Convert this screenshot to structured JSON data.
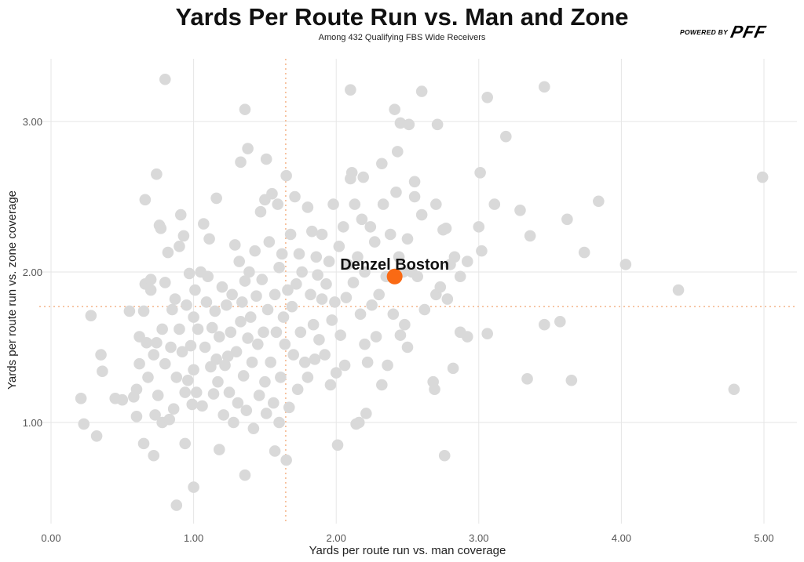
{
  "chart_data": {
    "type": "scatter",
    "title": "Yards Per Route Run vs. Man and Zone",
    "subtitle": "Among 432 Qualifying FBS Wide Receivers",
    "xlabel": "Yards per route run vs. man coverage",
    "ylabel": "Yards per route run vs. zone coverage",
    "xlim": [
      -0.05,
      5.1
    ],
    "ylim": [
      0.38,
      3.35
    ],
    "xticks": [
      "0.00",
      "1.00",
      "2.00",
      "3.00",
      "4.00",
      "5.00"
    ],
    "xtick_values": [
      0,
      1,
      2,
      3,
      4,
      5
    ],
    "yticks": [
      "1.00",
      "2.00",
      "3.00"
    ],
    "ytick_values": [
      1,
      2,
      3
    ],
    "ref_lines": {
      "x": 1.646,
      "y": 1.77
    },
    "highlight": {
      "name": "Denzel Boston",
      "x": 2.41,
      "y": 1.97,
      "color": "#fa6a14"
    },
    "point_color": "#d9d9d9",
    "points": [
      [
        0.8,
        3.28
      ],
      [
        3.46,
        3.23
      ],
      [
        2.1,
        3.21
      ],
      [
        2.6,
        3.2
      ],
      [
        3.06,
        3.16
      ],
      [
        1.36,
        3.08
      ],
      [
        2.41,
        3.08
      ],
      [
        2.45,
        2.99
      ],
      [
        2.51,
        2.98
      ],
      [
        2.71,
        2.98
      ],
      [
        3.19,
        2.9
      ],
      [
        2.43,
        2.8
      ],
      [
        1.38,
        2.82
      ],
      [
        0.74,
        2.65
      ],
      [
        4.99,
        2.63
      ],
      [
        3.01,
        2.66
      ],
      [
        1.33,
        2.73
      ],
      [
        1.51,
        2.75
      ],
      [
        2.32,
        2.72
      ],
      [
        2.11,
        2.66
      ],
      [
        2.19,
        2.63
      ],
      [
        2.55,
        2.6
      ],
      [
        0.66,
        2.48
      ],
      [
        1.16,
        2.49
      ],
      [
        3.11,
        2.45
      ],
      [
        3.29,
        2.41
      ],
      [
        3.84,
        2.47
      ],
      [
        3.62,
        2.35
      ],
      [
        3.36,
        2.24
      ],
      [
        3.0,
        2.3
      ],
      [
        3.02,
        2.14
      ],
      [
        3.74,
        2.13
      ],
      [
        4.03,
        2.05
      ],
      [
        4.4,
        1.88
      ],
      [
        3.46,
        1.65
      ],
      [
        3.57,
        1.67
      ],
      [
        3.06,
        1.59
      ],
      [
        2.82,
        1.36
      ],
      [
        2.68,
        1.27
      ],
      [
        2.69,
        1.22
      ],
      [
        3.34,
        1.29
      ],
      [
        3.65,
        1.28
      ],
      [
        4.79,
        1.22
      ],
      [
        2.76,
        0.78
      ],
      [
        2.01,
        0.85
      ],
      [
        0.88,
        0.45
      ],
      [
        1.0,
        0.57
      ],
      [
        1.36,
        0.65
      ],
      [
        1.65,
        0.75
      ],
      [
        0.72,
        0.78
      ],
      [
        0.21,
        1.16
      ],
      [
        0.23,
        0.99
      ],
      [
        0.32,
        0.91
      ],
      [
        0.28,
        1.71
      ],
      [
        0.35,
        1.45
      ],
      [
        0.36,
        1.34
      ],
      [
        0.65,
        0.86
      ],
      [
        0.94,
        0.86
      ],
      [
        1.18,
        0.82
      ],
      [
        1.57,
        0.81
      ],
      [
        2.14,
        0.99
      ],
      [
        2.21,
        1.06
      ],
      [
        2.87,
        1.6
      ],
      [
        2.92,
        1.57
      ],
      [
        2.87,
        1.97
      ],
      [
        0.45,
        1.16
      ],
      [
        0.5,
        1.15
      ],
      [
        0.55,
        1.74
      ],
      [
        0.58,
        1.17
      ],
      [
        0.6,
        1.04
      ],
      [
        0.6,
        1.22
      ],
      [
        0.62,
        1.57
      ],
      [
        0.62,
        1.39
      ],
      [
        0.65,
        1.74
      ],
      [
        0.66,
        1.92
      ],
      [
        0.67,
        1.53
      ],
      [
        0.68,
        1.3
      ],
      [
        0.7,
        1.88
      ],
      [
        0.7,
        1.95
      ],
      [
        0.72,
        1.45
      ],
      [
        0.73,
        1.05
      ],
      [
        0.74,
        1.53
      ],
      [
        0.75,
        1.18
      ],
      [
        0.76,
        2.31
      ],
      [
        0.77,
        2.29
      ],
      [
        0.78,
        1.0
      ],
      [
        0.78,
        1.62
      ],
      [
        0.8,
        1.39
      ],
      [
        0.8,
        1.93
      ],
      [
        0.82,
        2.13
      ],
      [
        0.83,
        1.02
      ],
      [
        0.84,
        1.5
      ],
      [
        0.85,
        1.75
      ],
      [
        0.86,
        1.09
      ],
      [
        0.87,
        1.82
      ],
      [
        0.88,
        1.3
      ],
      [
        0.9,
        1.62
      ],
      [
        0.9,
        2.17
      ],
      [
        0.91,
        2.38
      ],
      [
        0.92,
        1.47
      ],
      [
        0.93,
        2.24
      ],
      [
        0.94,
        1.2
      ],
      [
        0.95,
        1.78
      ],
      [
        0.96,
        1.28
      ],
      [
        0.97,
        1.99
      ],
      [
        0.98,
        1.51
      ],
      [
        0.99,
        1.12
      ],
      [
        1.0,
        1.7
      ],
      [
        1.0,
        1.35
      ],
      [
        1.01,
        1.88
      ],
      [
        1.02,
        1.2
      ],
      [
        1.03,
        1.62
      ],
      [
        1.05,
        2.0
      ],
      [
        1.06,
        1.11
      ],
      [
        1.07,
        2.32
      ],
      [
        1.08,
        1.5
      ],
      [
        1.09,
        1.8
      ],
      [
        1.1,
        1.97
      ],
      [
        1.11,
        2.22
      ],
      [
        1.12,
        1.37
      ],
      [
        1.13,
        1.63
      ],
      [
        1.14,
        1.19
      ],
      [
        1.15,
        1.74
      ],
      [
        1.16,
        1.42
      ],
      [
        1.17,
        1.27
      ],
      [
        1.18,
        1.57
      ],
      [
        1.2,
        1.9
      ],
      [
        1.21,
        1.05
      ],
      [
        1.22,
        1.38
      ],
      [
        1.23,
        1.78
      ],
      [
        1.24,
        1.44
      ],
      [
        1.25,
        1.2
      ],
      [
        1.26,
        1.6
      ],
      [
        1.27,
        1.85
      ],
      [
        1.28,
        1.0
      ],
      [
        1.29,
        2.18
      ],
      [
        1.3,
        1.47
      ],
      [
        1.31,
        1.13
      ],
      [
        1.32,
        2.07
      ],
      [
        1.33,
        1.67
      ],
      [
        1.34,
        1.8
      ],
      [
        1.35,
        1.31
      ],
      [
        1.36,
        1.94
      ],
      [
        1.37,
        1.08
      ],
      [
        1.38,
        1.56
      ],
      [
        1.39,
        2.0
      ],
      [
        1.4,
        1.7
      ],
      [
        1.41,
        1.4
      ],
      [
        1.42,
        0.96
      ],
      [
        1.43,
        2.14
      ],
      [
        1.44,
        1.84
      ],
      [
        1.45,
        1.52
      ],
      [
        1.46,
        1.18
      ],
      [
        1.47,
        2.4
      ],
      [
        1.48,
        1.95
      ],
      [
        1.49,
        1.6
      ],
      [
        1.5,
        1.27
      ],
      [
        1.5,
        2.48
      ],
      [
        1.51,
        1.06
      ],
      [
        1.52,
        1.75
      ],
      [
        1.53,
        2.2
      ],
      [
        1.54,
        1.4
      ],
      [
        1.55,
        2.52
      ],
      [
        1.56,
        1.13
      ],
      [
        1.57,
        1.85
      ],
      [
        1.58,
        1.6
      ],
      [
        1.59,
        2.45
      ],
      [
        1.6,
        1.0
      ],
      [
        1.6,
        2.03
      ],
      [
        1.61,
        1.3
      ],
      [
        1.62,
        2.12
      ],
      [
        1.63,
        1.7
      ],
      [
        1.64,
        1.52
      ],
      [
        1.65,
        2.64
      ],
      [
        1.66,
        1.88
      ],
      [
        1.67,
        1.1
      ],
      [
        1.68,
        2.25
      ],
      [
        1.69,
        1.77
      ],
      [
        1.7,
        1.45
      ],
      [
        1.71,
        2.5
      ],
      [
        1.72,
        1.92
      ],
      [
        1.73,
        1.22
      ],
      [
        1.74,
        2.12
      ],
      [
        1.75,
        1.6
      ],
      [
        1.76,
        2.0
      ],
      [
        1.78,
        1.4
      ],
      [
        1.8,
        2.43
      ],
      [
        1.8,
        1.3
      ],
      [
        1.82,
        1.85
      ],
      [
        1.83,
        2.27
      ],
      [
        1.84,
        1.65
      ],
      [
        1.85,
        1.42
      ],
      [
        1.86,
        2.1
      ],
      [
        1.87,
        1.98
      ],
      [
        1.88,
        1.55
      ],
      [
        1.9,
        2.25
      ],
      [
        1.9,
        1.82
      ],
      [
        1.92,
        1.45
      ],
      [
        1.93,
        1.92
      ],
      [
        1.95,
        2.07
      ],
      [
        1.96,
        1.25
      ],
      [
        1.97,
        1.68
      ],
      [
        1.98,
        2.45
      ],
      [
        1.99,
        1.8
      ],
      [
        2.0,
        1.33
      ],
      [
        2.02,
        2.17
      ],
      [
        2.03,
        1.58
      ],
      [
        2.05,
        2.3
      ],
      [
        2.06,
        1.38
      ],
      [
        2.07,
        1.83
      ],
      [
        2.08,
        2.05
      ],
      [
        2.1,
        2.62
      ],
      [
        2.12,
        1.93
      ],
      [
        2.13,
        2.45
      ],
      [
        2.15,
        2.1
      ],
      [
        2.16,
        1.0
      ],
      [
        2.17,
        1.72
      ],
      [
        2.18,
        2.35
      ],
      [
        2.2,
        1.52
      ],
      [
        2.2,
        2.0
      ],
      [
        2.22,
        1.4
      ],
      [
        2.24,
        2.3
      ],
      [
        2.25,
        1.78
      ],
      [
        2.27,
        2.2
      ],
      [
        2.28,
        1.57
      ],
      [
        2.3,
        1.85
      ],
      [
        2.32,
        1.25
      ],
      [
        2.33,
        2.45
      ],
      [
        2.35,
        1.97
      ],
      [
        2.36,
        1.38
      ],
      [
        2.38,
        2.25
      ],
      [
        2.4,
        1.72
      ],
      [
        2.42,
        2.53
      ],
      [
        2.44,
        2.1
      ],
      [
        2.45,
        1.58
      ],
      [
        2.47,
        2.0
      ],
      [
        2.48,
        1.65
      ],
      [
        2.5,
        2.22
      ],
      [
        2.5,
        1.5
      ],
      [
        2.53,
        2.0
      ],
      [
        2.55,
        2.5
      ],
      [
        2.57,
        1.97
      ],
      [
        2.6,
        2.38
      ],
      [
        2.62,
        1.75
      ],
      [
        2.7,
        2.45
      ],
      [
        2.7,
        1.85
      ],
      [
        2.73,
        1.9
      ],
      [
        2.75,
        2.28
      ],
      [
        2.77,
        2.29
      ],
      [
        2.78,
        1.82
      ],
      [
        2.8,
        2.05
      ],
      [
        2.83,
        2.1
      ],
      [
        2.92,
        2.07
      ]
    ]
  },
  "logo": {
    "powered_by": "POWERED BY",
    "brand": "PFF"
  }
}
